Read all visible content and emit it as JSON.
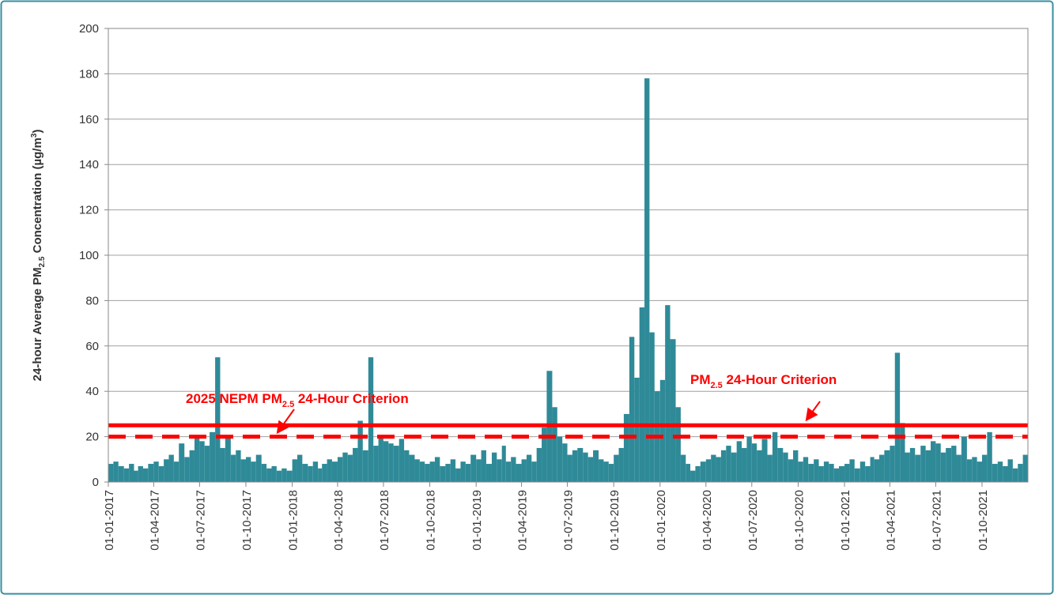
{
  "chart_data": {
    "type": "bar",
    "y_label": {
      "before": "24-hour Average PM",
      "sub": "2.5",
      "middle": " Concentration (µg/m",
      "sup": "3",
      "after": ")"
    },
    "color": "#2f8a98",
    "xlim": [
      "01-01-2017",
      "31-12-2021"
    ],
    "xticks": [
      "01-01-2017",
      "01-04-2017",
      "01-07-2017",
      "01-10-2017",
      "01-01-2018",
      "01-04-2018",
      "01-07-2018",
      "01-10-2018",
      "01-01-2019",
      "01-04-2019",
      "01-07-2019",
      "01-10-2019",
      "01-01-2020",
      "01-04-2020",
      "01-07-2020",
      "01-10-2020",
      "01-01-2021",
      "01-04-2021",
      "01-07-2021",
      "01-10-2021"
    ],
    "ylim": [
      0,
      200
    ],
    "yticks": [
      0,
      20,
      40,
      60,
      80,
      100,
      120,
      140,
      160,
      180,
      200
    ],
    "grid": true,
    "reference_lines": [
      {
        "value": 25,
        "style": "solid",
        "color": "#ff0000",
        "annotation": {
          "before": "PM",
          "sub": "2.5",
          "after": " 24-Hour Criterion"
        }
      },
      {
        "value": 20,
        "style": "dashed",
        "color": "#ff0000",
        "annotation": {
          "before": "2025 NEPM PM",
          "sub": "2.5",
          "after": " 24-Hour Criterion"
        }
      }
    ],
    "x": [
      "01-01-2017",
      "11-01-2017",
      "21-01-2017",
      "01-02-2017",
      "11-02-2017",
      "21-02-2017",
      "01-03-2017",
      "11-03-2017",
      "21-03-2017",
      "01-04-2017",
      "11-04-2017",
      "21-04-2017",
      "01-05-2017",
      "11-05-2017",
      "21-05-2017",
      "01-06-2017",
      "11-06-2017",
      "21-06-2017",
      "01-07-2017",
      "11-07-2017",
      "21-07-2017",
      "01-08-2017",
      "11-08-2017",
      "21-08-2017",
      "01-09-2017",
      "11-09-2017",
      "21-09-2017",
      "01-10-2017",
      "11-10-2017",
      "21-10-2017",
      "01-11-2017",
      "11-11-2017",
      "21-11-2017",
      "01-12-2017",
      "11-12-2017",
      "21-12-2017",
      "01-01-2018",
      "11-01-2018",
      "21-01-2018",
      "01-02-2018",
      "11-02-2018",
      "21-02-2018",
      "01-03-2018",
      "11-03-2018",
      "21-03-2018",
      "01-04-2018",
      "11-04-2018",
      "21-04-2018",
      "01-05-2018",
      "11-05-2018",
      "21-05-2018",
      "01-06-2018",
      "11-06-2018",
      "21-06-2018",
      "01-07-2018",
      "11-07-2018",
      "21-07-2018",
      "01-08-2018",
      "11-08-2018",
      "21-08-2018",
      "01-09-2018",
      "11-09-2018",
      "21-09-2018",
      "01-10-2018",
      "11-10-2018",
      "21-10-2018",
      "01-11-2018",
      "11-11-2018",
      "21-11-2018",
      "01-12-2018",
      "11-12-2018",
      "21-12-2018",
      "01-01-2019",
      "11-01-2019",
      "21-01-2019",
      "01-02-2019",
      "11-02-2019",
      "21-02-2019",
      "01-03-2019",
      "11-03-2019",
      "21-03-2019",
      "01-04-2019",
      "11-04-2019",
      "21-04-2019",
      "01-05-2019",
      "11-05-2019",
      "21-05-2019",
      "01-06-2019",
      "11-06-2019",
      "21-06-2019",
      "01-07-2019",
      "11-07-2019",
      "21-07-2019",
      "01-08-2019",
      "11-08-2019",
      "21-08-2019",
      "01-09-2019",
      "11-09-2019",
      "21-09-2019",
      "01-10-2019",
      "11-10-2019",
      "21-10-2019",
      "01-11-2019",
      "11-11-2019",
      "21-11-2019",
      "01-12-2019",
      "11-12-2019",
      "21-12-2019",
      "01-01-2020",
      "11-01-2020",
      "21-01-2020",
      "01-02-2020",
      "11-02-2020",
      "21-02-2020",
      "01-03-2020",
      "11-03-2020",
      "21-03-2020",
      "01-04-2020",
      "11-04-2020",
      "21-04-2020",
      "01-05-2020",
      "11-05-2020",
      "21-05-2020",
      "01-06-2020",
      "11-06-2020",
      "21-06-2020",
      "01-07-2020",
      "11-07-2020",
      "21-07-2020",
      "01-08-2020",
      "11-08-2020",
      "21-08-2020",
      "01-09-2020",
      "11-09-2020",
      "21-09-2020",
      "01-10-2020",
      "11-10-2020",
      "21-10-2020",
      "01-11-2020",
      "11-11-2020",
      "21-11-2020",
      "01-12-2020",
      "11-12-2020",
      "21-12-2020",
      "01-01-2021",
      "11-01-2021",
      "21-01-2021",
      "01-02-2021",
      "11-02-2021",
      "21-02-2021",
      "01-03-2021",
      "11-03-2021",
      "21-03-2021",
      "01-04-2021",
      "11-04-2021",
      "21-04-2021",
      "01-05-2021",
      "11-05-2021",
      "21-05-2021",
      "01-06-2021",
      "11-06-2021",
      "21-06-2021",
      "01-07-2021",
      "11-07-2021",
      "21-07-2021",
      "01-08-2021",
      "11-08-2021",
      "21-08-2021",
      "01-09-2021",
      "11-09-2021",
      "21-09-2021",
      "01-10-2021",
      "11-10-2021",
      "21-10-2021",
      "01-11-2021",
      "11-11-2021",
      "21-11-2021",
      "01-12-2021",
      "11-12-2021",
      "21-12-2021"
    ],
    "values": [
      8,
      9,
      7,
      6,
      8,
      5,
      7,
      6,
      8,
      9,
      7,
      10,
      12,
      9,
      17,
      11,
      14,
      20,
      18,
      16,
      22,
      55,
      15,
      20,
      12,
      14,
      10,
      11,
      9,
      12,
      8,
      6,
      7,
      5,
      6,
      5,
      10,
      12,
      8,
      7,
      9,
      6,
      8,
      10,
      9,
      11,
      13,
      12,
      15,
      27,
      14,
      55,
      16,
      20,
      18,
      17,
      16,
      19,
      14,
      12,
      10,
      9,
      8,
      9,
      11,
      7,
      8,
      10,
      6,
      9,
      8,
      12,
      10,
      14,
      8,
      13,
      10,
      16,
      9,
      11,
      8,
      10,
      12,
      9,
      15,
      24,
      49,
      33,
      20,
      17,
      12,
      14,
      15,
      13,
      11,
      14,
      10,
      9,
      8,
      12,
      15,
      30,
      64,
      46,
      77,
      178,
      66,
      40,
      45,
      78,
      63,
      33,
      12,
      8,
      5,
      7,
      9,
      10,
      12,
      11,
      14,
      16,
      13,
      18,
      15,
      20,
      17,
      14,
      19,
      12,
      22,
      15,
      13,
      10,
      14,
      9,
      11,
      8,
      10,
      7,
      9,
      8,
      6,
      7,
      8,
      10,
      6,
      9,
      7,
      11,
      10,
      12,
      14,
      16,
      57,
      26,
      13,
      15,
      12,
      16,
      14,
      18,
      17,
      13,
      15,
      16,
      12,
      20,
      10,
      11,
      9,
      12,
      22,
      8,
      9,
      7,
      10,
      6,
      8,
      12
    ]
  }
}
